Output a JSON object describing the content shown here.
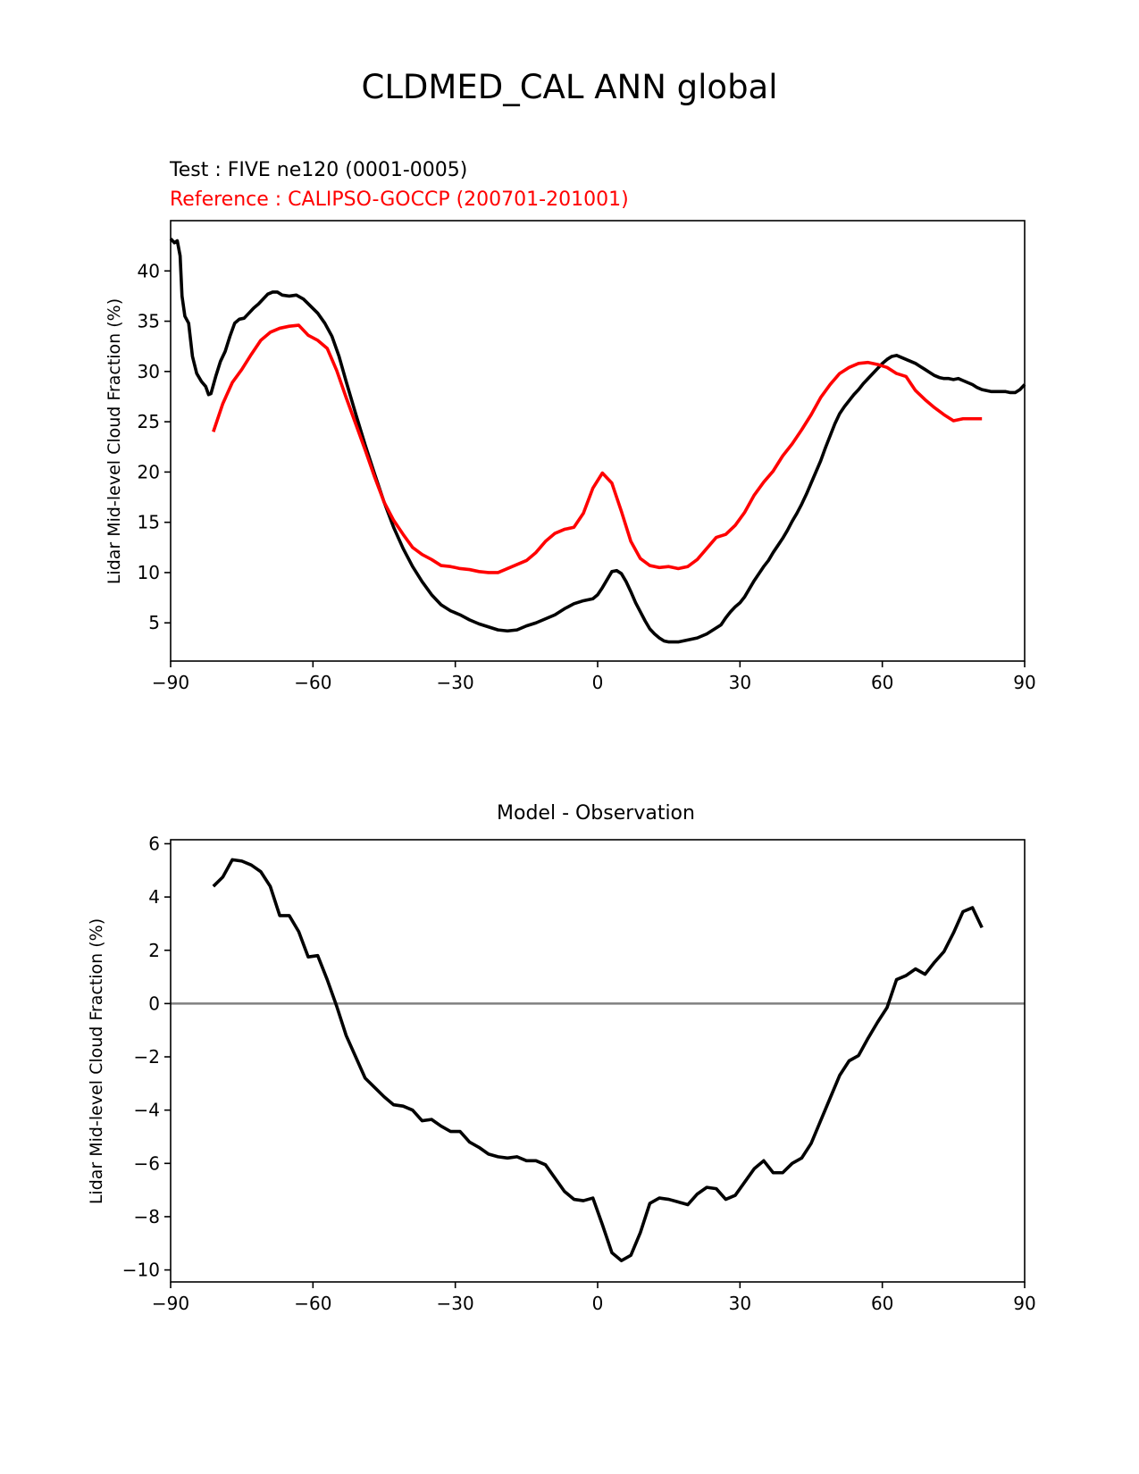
{
  "title": "CLDMED_CAL ANN global",
  "colors": {
    "test": "#000000",
    "reference": "#ff0000",
    "zero_line": "#808080"
  },
  "chart_data": [
    {
      "type": "line",
      "test_label": "Test : FIVE ne120 (0001-0005)",
      "reference_label": "Reference : CALIPSO-GOCCP (200701-201001)",
      "ylabel": "Lidar Mid-level Cloud Fraction (%)",
      "xlabel": "",
      "xlim": [
        -90,
        90
      ],
      "ylim": [
        1.2,
        45
      ],
      "xticks": [
        -90,
        -60,
        -30,
        0,
        30,
        60,
        90
      ],
      "xtick_labels": [
        "−90",
        "−60",
        "−30",
        "0",
        "30",
        "60",
        "90"
      ],
      "yticks": [
        5,
        10,
        15,
        20,
        25,
        30,
        35,
        40
      ],
      "ytick_labels": [
        "5",
        "10",
        "15",
        "20",
        "25",
        "30",
        "35",
        "40"
      ],
      "series": [
        {
          "name": "Test : FIVE ne120 (0001-0005)",
          "color": "#000000",
          "x": [
            -90,
            -89.2,
            -88.6,
            -88,
            -87.6,
            -87,
            -86.2,
            -85.4,
            -84.5,
            -83.5,
            -82.6,
            -82,
            -81.5,
            -80.5,
            -79.5,
            -78.5,
            -77.5,
            -76.5,
            -75.5,
            -74.5,
            -73.5,
            -72.5,
            -71.5,
            -70.5,
            -69.5,
            -68.5,
            -67.5,
            -66.5,
            -65,
            -63.5,
            -62,
            -60.5,
            -59,
            -57.5,
            -56,
            -54.5,
            -53,
            -51,
            -49,
            -47,
            -45,
            -43,
            -41,
            -39,
            -37,
            -35,
            -33,
            -31,
            -29,
            -27,
            -25,
            -23,
            -21,
            -19,
            -17,
            -15,
            -13,
            -11,
            -9,
            -7,
            -5,
            -3,
            -1,
            0,
            1,
            2,
            3,
            4,
            5,
            6,
            7,
            8,
            9,
            10,
            11,
            12,
            13,
            14,
            15,
            16,
            17,
            18,
            19,
            20,
            21,
            22,
            23,
            24,
            25,
            26,
            27,
            28,
            29,
            30,
            31,
            32,
            33,
            34,
            35,
            36,
            37,
            38,
            39,
            40,
            41,
            42,
            43,
            44,
            45,
            46,
            47,
            48,
            49,
            50,
            51,
            52,
            53,
            54,
            55,
            56,
            57,
            58,
            59,
            60,
            61,
            62,
            63,
            64,
            65,
            66,
            67,
            68,
            69,
            70,
            71,
            72,
            73,
            74,
            75,
            76,
            77,
            78,
            79,
            80,
            81,
            82,
            83,
            84,
            85,
            86,
            87,
            88,
            89,
            90
          ],
          "y": [
            43.2,
            42.8,
            43.0,
            41.5,
            37.5,
            35.5,
            34.8,
            31.5,
            29.8,
            29.0,
            28.5,
            27.7,
            27.8,
            29.5,
            31.0,
            32.0,
            33.5,
            34.8,
            35.2,
            35.3,
            35.8,
            36.3,
            36.7,
            37.2,
            37.7,
            37.9,
            37.9,
            37.6,
            37.5,
            37.6,
            37.2,
            36.5,
            35.8,
            34.8,
            33.5,
            31.5,
            29.0,
            25.8,
            22.7,
            19.8,
            17.0,
            14.5,
            12.4,
            10.6,
            9.1,
            7.8,
            6.8,
            6.2,
            5.8,
            5.3,
            4.9,
            4.6,
            4.3,
            4.2,
            4.3,
            4.7,
            5.0,
            5.4,
            5.8,
            6.4,
            6.9,
            7.2,
            7.4,
            7.8,
            8.5,
            9.3,
            10.1,
            10.2,
            9.9,
            9.1,
            8.1,
            7.0,
            6.1,
            5.2,
            4.4,
            3.9,
            3.5,
            3.2,
            3.1,
            3.1,
            3.1,
            3.2,
            3.3,
            3.4,
            3.5,
            3.7,
            3.9,
            4.2,
            4.5,
            4.8,
            5.5,
            6.1,
            6.6,
            7.0,
            7.6,
            8.4,
            9.2,
            9.9,
            10.6,
            11.2,
            12.0,
            12.7,
            13.4,
            14.2,
            15.1,
            15.9,
            16.8,
            17.8,
            18.9,
            20.0,
            21.1,
            22.4,
            23.6,
            24.8,
            25.8,
            26.5,
            27.1,
            27.7,
            28.2,
            28.8,
            29.3,
            29.8,
            30.3,
            30.8,
            31.2,
            31.5,
            31.6,
            31.4,
            31.2,
            31.0,
            30.8,
            30.5,
            30.2,
            29.9,
            29.6,
            29.4,
            29.3,
            29.3,
            29.2,
            29.3,
            29.1,
            28.9,
            28.7,
            28.4,
            28.2,
            28.1,
            28.0,
            28.0,
            28.0,
            28.0,
            27.9,
            27.9,
            28.2,
            28.7
          ]
        },
        {
          "name": "Reference : CALIPSO-GOCCP (200701-201001)",
          "color": "#ff0000",
          "x": [
            -81,
            -79,
            -77,
            -75,
            -73,
            -71,
            -69,
            -67,
            -65,
            -63,
            -61,
            -59,
            -57,
            -55,
            -53,
            -51,
            -49,
            -47,
            -45,
            -43,
            -41,
            -39,
            -37,
            -35,
            -33,
            -31,
            -29,
            -27,
            -25,
            -23,
            -21,
            -19,
            -17,
            -15,
            -13,
            -11,
            -9,
            -7,
            -5,
            -3,
            -1,
            1,
            3,
            5,
            7,
            9,
            11,
            13,
            15,
            17,
            19,
            21,
            23,
            25,
            27,
            29,
            31,
            33,
            35,
            37,
            39,
            41,
            43,
            45,
            47,
            49,
            51,
            53,
            55,
            57,
            59,
            61,
            63,
            65,
            67,
            69,
            71,
            73,
            75,
            77,
            79,
            81
          ],
          "y": [
            24.0,
            26.8,
            28.9,
            30.2,
            31.7,
            33.1,
            33.9,
            34.3,
            34.5,
            34.6,
            33.6,
            33.1,
            32.3,
            30.1,
            27.4,
            24.8,
            22.2,
            19.5,
            17.0,
            15.2,
            13.8,
            12.5,
            11.8,
            11.3,
            10.7,
            10.6,
            10.4,
            10.3,
            10.1,
            10.0,
            10.0,
            10.4,
            10.8,
            11.2,
            12.0,
            13.1,
            13.9,
            14.3,
            14.5,
            15.9,
            18.4,
            19.9,
            18.9,
            16.1,
            13.1,
            11.4,
            10.7,
            10.5,
            10.6,
            10.4,
            10.6,
            11.3,
            12.4,
            13.5,
            13.8,
            14.7,
            16.0,
            17.7,
            19.0,
            20.1,
            21.6,
            22.8,
            24.2,
            25.7,
            27.4,
            28.7,
            29.8,
            30.4,
            30.8,
            30.9,
            30.7,
            30.4,
            29.8,
            29.5,
            28.1,
            27.2,
            26.4,
            25.7,
            25.1,
            25.3,
            25.3,
            25.3
          ]
        }
      ]
    },
    {
      "type": "line",
      "title": "Model - Observation",
      "ylabel": "Lidar Mid-level Cloud Fraction (%)",
      "xlabel": "",
      "xlim": [
        -90,
        90
      ],
      "ylim": [
        -10.45,
        6.15
      ],
      "xticks": [
        -90,
        -60,
        -30,
        0,
        30,
        60,
        90
      ],
      "xtick_labels": [
        "−90",
        "−60",
        "−30",
        "0",
        "30",
        "60",
        "90"
      ],
      "yticks": [
        -10,
        -8,
        -6,
        -4,
        -2,
        0,
        2,
        4,
        6
      ],
      "ytick_labels": [
        "−10",
        "−8",
        "−6",
        "−4",
        "−2",
        "0",
        "2",
        "4",
        "6"
      ],
      "zero_line": 0,
      "series": [
        {
          "name": "Model - Observation",
          "color": "#000000",
          "x": [
            -81,
            -79,
            -77,
            -75,
            -73,
            -71,
            -69,
            -67,
            -65,
            -63,
            -61,
            -59,
            -57,
            -55,
            -53,
            -51,
            -49,
            -47,
            -45,
            -43,
            -41,
            -39,
            -37,
            -35,
            -33,
            -31,
            -29,
            -27,
            -25,
            -23,
            -21,
            -19,
            -17,
            -15,
            -13,
            -11,
            -9,
            -7,
            -5,
            -3,
            -1,
            1,
            3,
            5,
            7,
            9,
            11,
            13,
            15,
            17,
            19,
            21,
            23,
            25,
            27,
            29,
            31,
            33,
            35,
            37,
            39,
            41,
            43,
            45,
            47,
            49,
            51,
            53,
            55,
            57,
            59,
            61,
            63,
            65,
            67,
            69,
            71,
            73,
            75,
            77,
            79,
            81
          ],
          "y": [
            4.4,
            4.75,
            5.4,
            5.35,
            5.2,
            4.95,
            4.4,
            3.3,
            3.3,
            2.7,
            1.75,
            1.8,
            0.9,
            -0.1,
            -1.2,
            -2.0,
            -2.8,
            -3.15,
            -3.5,
            -3.8,
            -3.85,
            -4.0,
            -4.4,
            -4.35,
            -4.6,
            -4.8,
            -4.8,
            -5.2,
            -5.4,
            -5.65,
            -5.75,
            -5.8,
            -5.75,
            -5.9,
            -5.9,
            -6.05,
            -6.55,
            -7.05,
            -7.35,
            -7.4,
            -7.3,
            -8.3,
            -9.35,
            -9.65,
            -9.45,
            -8.6,
            -7.5,
            -7.3,
            -7.35,
            -7.45,
            -7.55,
            -7.15,
            -6.9,
            -6.95,
            -7.35,
            -7.2,
            -6.7,
            -6.2,
            -5.9,
            -6.35,
            -6.35,
            -6.0,
            -5.8,
            -5.25,
            -4.4,
            -3.55,
            -2.7,
            -2.15,
            -1.95,
            -1.3,
            -0.7,
            -0.15,
            0.9,
            1.05,
            1.3,
            1.1,
            1.55,
            1.95,
            2.65,
            3.45,
            3.6,
            2.85
          ]
        }
      ]
    }
  ]
}
